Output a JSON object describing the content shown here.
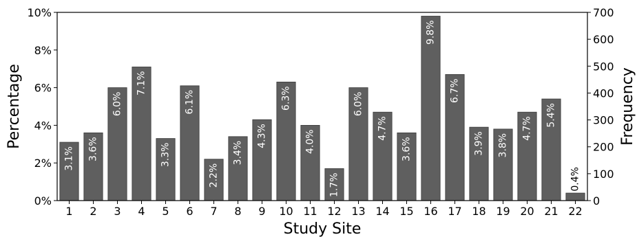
{
  "chart_data": {
    "type": "bar",
    "xlabel": "Study Site",
    "ylabel": "Percentage",
    "y2label": "Frequency",
    "categories": [
      "1",
      "2",
      "3",
      "4",
      "5",
      "6",
      "7",
      "8",
      "9",
      "10",
      "11",
      "12",
      "13",
      "14",
      "15",
      "16",
      "17",
      "18",
      "19",
      "20",
      "21",
      "22"
    ],
    "values": [
      3.1,
      3.6,
      6.0,
      7.1,
      3.3,
      6.1,
      2.2,
      3.4,
      4.3,
      6.3,
      4.0,
      1.7,
      6.0,
      4.7,
      3.6,
      9.8,
      6.7,
      3.9,
      3.8,
      4.7,
      5.4,
      0.4
    ],
    "data_labels": [
      "3.1%",
      "3.6%",
      "6.0%",
      "7.1%",
      "3.3%",
      "6.1%",
      "2.2%",
      "3.4%",
      "4.3%",
      "6.3%",
      "4.0%",
      "1.7%",
      "6.0%",
      "4.7%",
      "3.6%",
      "9.8%",
      "6.7%",
      "3.9%",
      "3.8%",
      "4.7%",
      "5.4%",
      "0.4%"
    ],
    "ylim": [
      0,
      10
    ],
    "yticks": [
      0,
      2,
      4,
      6,
      8,
      10
    ],
    "ytick_labels": [
      "0%",
      "2%",
      "4%",
      "6%",
      "8%",
      "10%"
    ],
    "y2lim": [
      0,
      700
    ],
    "y2ticks": [
      0,
      100,
      200,
      300,
      400,
      500,
      600,
      700
    ],
    "y2tick_labels": [
      "0",
      "100",
      "200",
      "300",
      "400",
      "500",
      "600",
      "700"
    ],
    "bar_color": "#5f5f5f",
    "label_color_inside": "#ffffff",
    "label_color_outside": "#000000",
    "grid": false,
    "legend": "none"
  }
}
